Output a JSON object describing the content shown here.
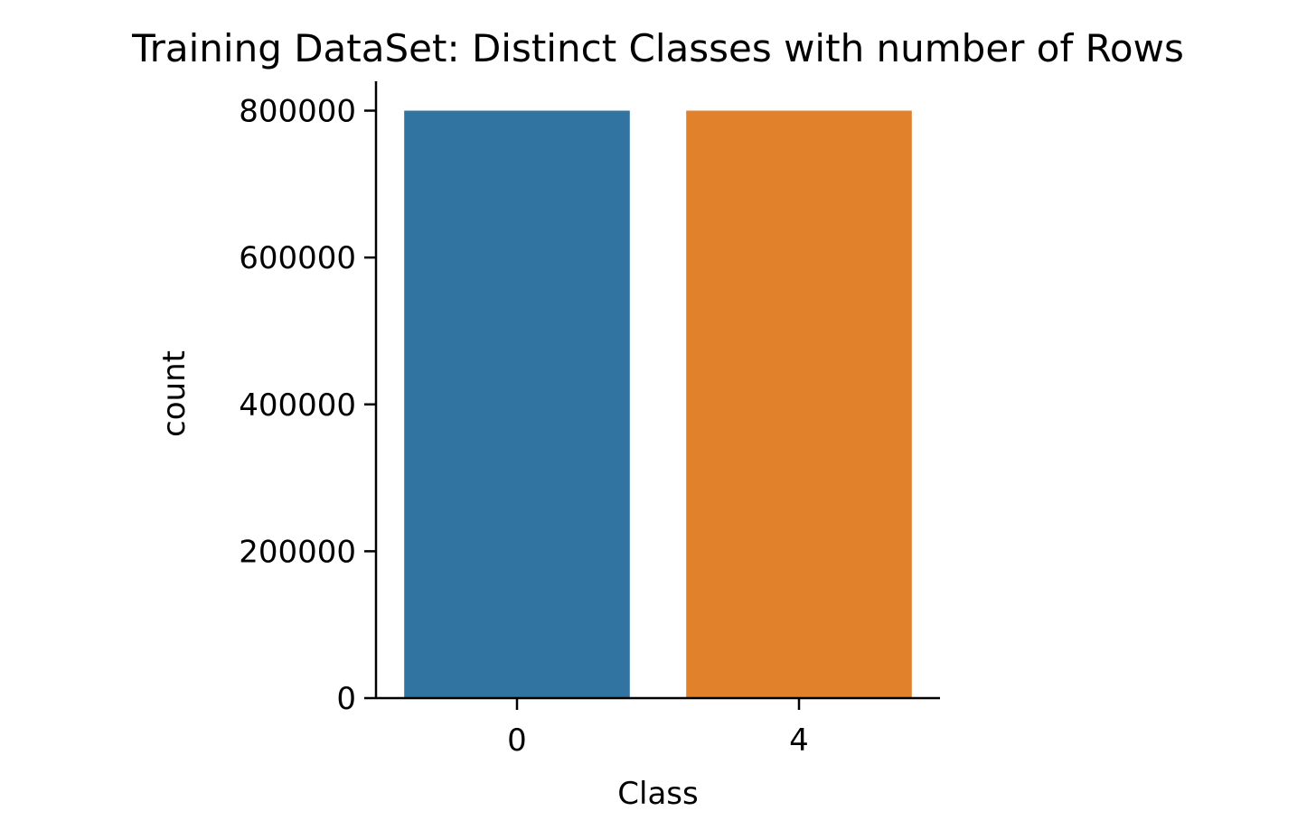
{
  "chart_data": {
    "type": "bar",
    "title": "Training DataSet: Distinct Classes with number of Rows",
    "xlabel": "Class",
    "ylabel": "count",
    "categories": [
      "0",
      "4"
    ],
    "values": [
      800000,
      800000
    ],
    "colors": [
      "#3274a1",
      "#e1812c"
    ],
    "ylim": [
      0,
      840000
    ],
    "yticks": [
      0,
      200000,
      400000,
      600000,
      800000
    ],
    "ytick_labels": [
      "0",
      "200000",
      "400000",
      "600000",
      "800000"
    ],
    "grid": false,
    "legend": "none"
  }
}
